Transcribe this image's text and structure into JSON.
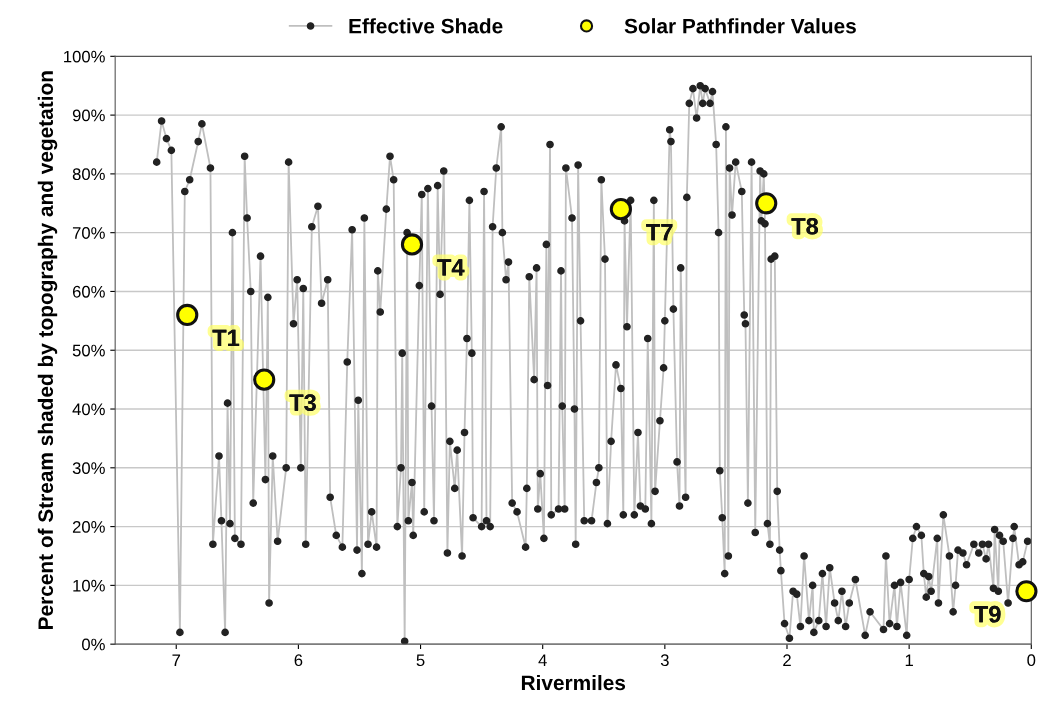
{
  "chart_data": {
    "type": "line",
    "xlabel": "Rivermiles",
    "ylabel": "Percent of Stream shaded by topography and vegetation",
    "xlim": [
      7.5,
      0
    ],
    "xticks": [
      7,
      6,
      5,
      4,
      3,
      2,
      1,
      0
    ],
    "ylim": [
      0,
      100
    ],
    "yticks": [
      {
        "value": 0,
        "label": "0%"
      },
      {
        "value": 10,
        "label": "10%"
      },
      {
        "value": 20,
        "label": "20%"
      },
      {
        "value": 30,
        "label": "30%"
      },
      {
        "value": 40,
        "label": "40%"
      },
      {
        "value": 50,
        "label": "50%"
      },
      {
        "value": 60,
        "label": "60%"
      },
      {
        "value": 70,
        "label": "70%"
      },
      {
        "value": 80,
        "label": "80%"
      },
      {
        "value": 90,
        "label": "90%"
      },
      {
        "value": 100,
        "label": "100%"
      }
    ],
    "grid": "y",
    "legend": "top",
    "series": [
      {
        "name": "Effective Shade",
        "color": "#bfbfbf",
        "marker": "circle",
        "line_style": "solid",
        "x": [
          7.16,
          7.12,
          7.08,
          7.04,
          6.97,
          6.93,
          6.89,
          6.82,
          6.79,
          6.72,
          6.7,
          6.65,
          6.63,
          6.6,
          6.58,
          6.56,
          6.54,
          6.52,
          6.47,
          6.44,
          6.42,
          6.39,
          6.37,
          6.31,
          6.27,
          6.25,
          6.24,
          6.21,
          6.17,
          6.1,
          6.08,
          6.04,
          6.01,
          5.98,
          5.96,
          5.94,
          5.89,
          5.84,
          5.81,
          5.76,
          5.74,
          5.69,
          5.64,
          5.6,
          5.56,
          5.52,
          5.51,
          5.48,
          5.46,
          5.43,
          5.4,
          5.36,
          5.35,
          5.33,
          5.28,
          5.25,
          5.22,
          5.19,
          5.16,
          5.15,
          5.13,
          5.11,
          5.1,
          5.07,
          5.06,
          5.01,
          4.99,
          4.97,
          4.94,
          4.91,
          4.89,
          4.86,
          4.84,
          4.81,
          4.78,
          4.76,
          4.72,
          4.7,
          4.66,
          4.64,
          4.62,
          4.6,
          4.58,
          4.57,
          4.5,
          4.48,
          4.46,
          4.43,
          4.41,
          4.38,
          4.34,
          4.33,
          4.3,
          4.28,
          4.25,
          4.21,
          4.14,
          4.13,
          4.11,
          4.07,
          4.05,
          4.04,
          4.02,
          3.99,
          3.97,
          3.96,
          3.94,
          3.93,
          3.87,
          3.85,
          3.84,
          3.82,
          3.81,
          3.76,
          3.74,
          3.73,
          3.71,
          3.69,
          3.66,
          3.6,
          3.56,
          3.54,
          3.52,
          3.49,
          3.47,
          3.44,
          3.4,
          3.36,
          3.34,
          3.33,
          3.31,
          3.28,
          3.25,
          3.22,
          3.2,
          3.16,
          3.14,
          3.11,
          3.09,
          3.08,
          3.04,
          3.01,
          3.0,
          2.96,
          2.95,
          2.93,
          2.9,
          2.88,
          2.87,
          2.83,
          2.82,
          2.8,
          2.77,
          2.74,
          2.71,
          2.69,
          2.67,
          2.63,
          2.61,
          2.58,
          2.56,
          2.55,
          2.53,
          2.51,
          2.5,
          2.48,
          2.47,
          2.45,
          2.42,
          2.37,
          2.35,
          2.34,
          2.32,
          2.29,
          2.26,
          2.22,
          2.21,
          2.19,
          2.18,
          2.16,
          2.14,
          2.13,
          2.1,
          2.08,
          2.06,
          2.05,
          2.02,
          1.98,
          1.95,
          1.92,
          1.89,
          1.86,
          1.82,
          1.79,
          1.78,
          1.74,
          1.71,
          1.68,
          1.65,
          1.61,
          1.58,
          1.55,
          1.52,
          1.49,
          1.44,
          1.36,
          1.32,
          1.21,
          1.19,
          1.16,
          1.12,
          1.1,
          1.07,
          1.02,
          1.0,
          0.97,
          0.94,
          0.9,
          0.88,
          0.86,
          0.84,
          0.82,
          0.77,
          0.76,
          0.72,
          0.67,
          0.64,
          0.62,
          0.6,
          0.56,
          0.53,
          0.47,
          0.43,
          0.4,
          0.37,
          0.35,
          0.31,
          0.3,
          0.27,
          0.26,
          0.23,
          0.19,
          0.15,
          0.14,
          0.1,
          0.07,
          0.03
        ],
        "values": [
          82,
          89,
          86,
          84,
          2,
          77,
          79,
          85.5,
          88.5,
          81,
          17,
          32,
          21,
          2,
          41,
          20.5,
          70,
          18,
          17,
          83,
          72.5,
          60,
          24,
          66,
          28,
          59,
          7,
          32,
          17.5,
          30,
          82,
          54.5,
          62,
          30,
          60.5,
          17,
          71,
          74.5,
          58,
          62,
          25,
          18.5,
          16.5,
          48,
          70.5,
          16,
          41.5,
          12,
          72.5,
          17,
          22.5,
          16.5,
          63.5,
          56.5,
          74,
          83,
          79,
          20,
          30,
          49.5,
          0.5,
          70,
          21,
          27.5,
          18.5,
          61,
          76.5,
          22.5,
          77.5,
          40.5,
          21,
          78,
          59.5,
          80.5,
          15.5,
          34.5,
          26.5,
          33,
          15,
          36,
          52,
          75.5,
          49.5,
          21.5,
          20,
          77,
          21,
          20,
          71,
          81,
          88,
          70,
          62,
          65,
          24,
          22.5,
          16.5,
          26.5,
          62.5,
          45,
          64,
          23,
          29,
          18,
          68,
          44,
          85,
          22,
          23,
          63.5,
          40.5,
          23,
          81,
          72.5,
          40,
          17,
          81.5,
          55,
          21,
          21,
          27.5,
          30,
          79,
          65.5,
          20.5,
          34.5,
          47.5,
          43.5,
          22,
          72,
          54,
          75.5,
          22,
          36,
          23.5,
          23,
          52,
          20.5,
          75.5,
          26,
          38,
          47,
          55,
          87.5,
          85.5,
          57,
          31,
          23.5,
          64,
          25,
          76,
          92,
          94.5,
          89.5,
          95,
          92,
          94.5,
          92,
          94,
          85,
          70,
          29.5,
          21.5,
          12,
          88,
          15,
          81,
          73,
          82,
          77,
          56,
          54.5,
          24,
          82,
          19,
          80.5,
          72,
          80,
          71.5,
          20.5,
          17,
          65.5,
          66,
          26,
          16,
          12.5,
          3.5,
          1,
          9,
          8.5,
          3,
          15,
          4,
          10,
          2,
          4,
          12,
          3,
          13,
          7,
          4,
          9,
          3,
          7,
          11,
          1.5,
          5.5,
          2.5,
          15,
          3.5,
          10,
          3,
          10.5,
          1.5,
          11,
          18,
          20,
          18.5,
          12,
          8,
          11.5,
          9,
          18,
          7,
          22,
          15,
          5.5,
          10,
          16,
          15.5,
          13.5,
          17,
          15.5,
          17,
          14.5,
          17,
          9.5,
          19.5,
          9,
          18.5,
          17.5,
          7,
          18,
          20,
          13.5,
          14,
          17.5
        ]
      },
      {
        "name": "Solar Pathfinder Values",
        "type": "scatter",
        "color": "#ffff00",
        "marker": "circle",
        "x": [
          6.91,
          6.28,
          5.07,
          3.36,
          2.17,
          0.04
        ],
        "values": [
          56,
          45,
          68,
          74,
          75,
          9
        ]
      }
    ],
    "annotations": [
      {
        "text": "T1",
        "x": 6.91,
        "y": 56
      },
      {
        "text": "T3",
        "x": 6.28,
        "y": 45
      },
      {
        "text": "T4",
        "x": 5.07,
        "y": 68
      },
      {
        "text": "T7",
        "x": 3.36,
        "y": 74
      },
      {
        "text": "T8",
        "x": 2.17,
        "y": 75
      },
      {
        "text": "T9",
        "x": 0.04,
        "y": 9
      }
    ]
  }
}
